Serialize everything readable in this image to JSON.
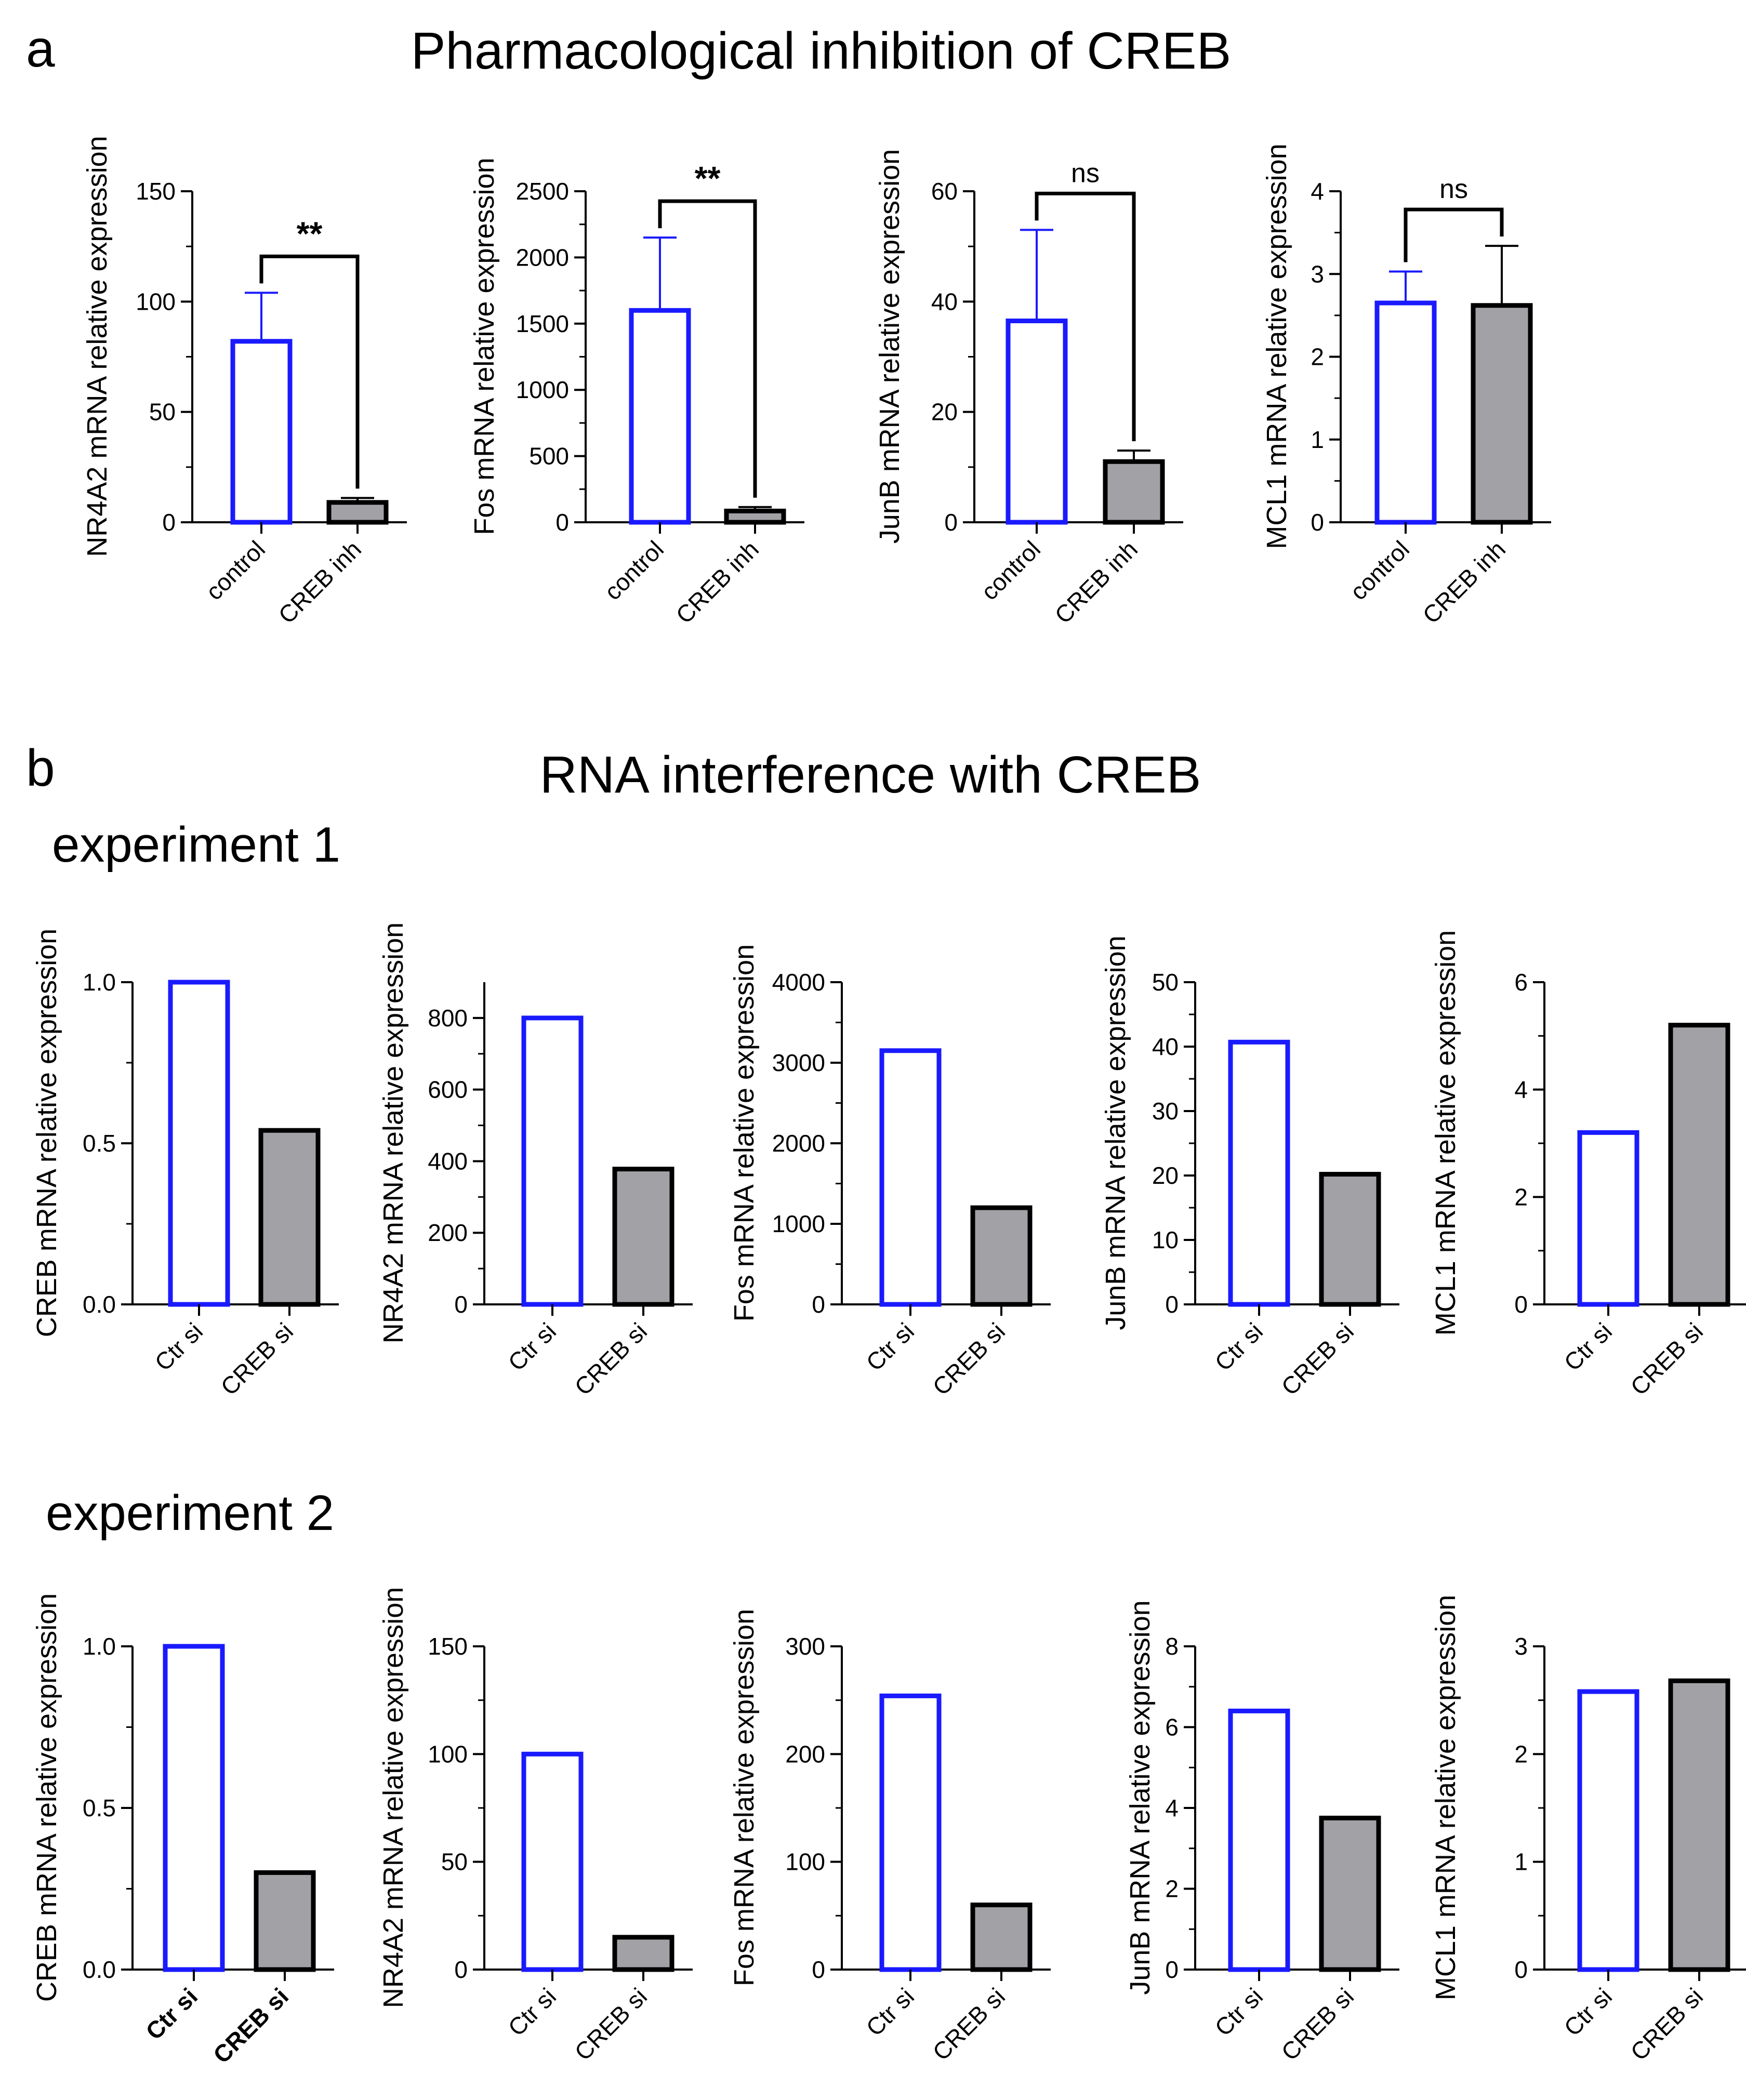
{
  "panel_a": {
    "letter": "a",
    "title": "Pharmacological inhibition of CREB"
  },
  "panel_b": {
    "letter": "b",
    "title": "RNA interference with CREB",
    "experiment1_title": "experiment 1",
    "experiment2_title": "experiment 2"
  },
  "colors": {
    "control": "#1a1aff",
    "treated_fill": "#a2a2a6",
    "treated_edge": "#000000"
  },
  "chart_data": [
    {
      "id": "a1",
      "type": "bar",
      "ylabel": "NR4A2 mRNA relative expression",
      "categories": [
        "control",
        "CREB inh"
      ],
      "values": [
        82,
        9
      ],
      "errors": [
        22,
        2
      ],
      "ylim": [
        0,
        150
      ],
      "yticks": [
        0,
        50,
        100,
        150
      ],
      "significance": "**"
    },
    {
      "id": "a2",
      "type": "bar",
      "ylabel": "Fos mRNA relative expression",
      "categories": [
        "control",
        "CREB inh"
      ],
      "values": [
        1600,
        85
      ],
      "errors": [
        550,
        30
      ],
      "ylim": [
        0,
        2500
      ],
      "yticks": [
        0,
        500,
        1000,
        1500,
        2000,
        2500
      ],
      "significance": "**"
    },
    {
      "id": "a3",
      "type": "bar",
      "ylabel": "JunB mRNA relative expression",
      "categories": [
        "control",
        "CREB inh"
      ],
      "values": [
        36.5,
        11
      ],
      "errors": [
        16.5,
        2
      ],
      "ylim": [
        0,
        60
      ],
      "yticks": [
        0,
        20,
        40,
        60
      ],
      "significance": "ns"
    },
    {
      "id": "a4",
      "type": "bar",
      "ylabel": "MCL1 mRNA relative expression",
      "categories": [
        "control",
        "CREB inh"
      ],
      "values": [
        2.65,
        2.62
      ],
      "errors": [
        0.38,
        0.72
      ],
      "ylim": [
        0,
        4
      ],
      "yticks": [
        0,
        1,
        2,
        3,
        4
      ],
      "significance": "ns"
    },
    {
      "id": "b1",
      "type": "bar",
      "ylabel": "CREB mRNA relative expression",
      "categories": [
        "Ctr si",
        "CREB si"
      ],
      "values": [
        1.0,
        0.54
      ],
      "ylim": [
        0,
        1.0
      ],
      "yticks": [
        0.0,
        0.5,
        1.0
      ],
      "tick_labels": [
        "0.0",
        "0.5",
        "1.0"
      ]
    },
    {
      "id": "b2",
      "type": "bar",
      "ylabel": "NR4A2 mRNA relative expression",
      "categories": [
        "Ctr si",
        "CREB si"
      ],
      "values": [
        800,
        378
      ],
      "ylim": [
        0,
        900
      ],
      "yticks": [
        0,
        200,
        400,
        600,
        800
      ]
    },
    {
      "id": "b3",
      "type": "bar",
      "ylabel": "Fos mRNA relative expression",
      "categories": [
        "Ctr si",
        "CREB si"
      ],
      "values": [
        3150,
        1200
      ],
      "ylim": [
        0,
        4000
      ],
      "yticks": [
        0,
        1000,
        2000,
        3000,
        4000
      ]
    },
    {
      "id": "b4",
      "type": "bar",
      "ylabel": "JunB mRNA relative expression",
      "categories": [
        "Ctr si",
        "CREB si"
      ],
      "values": [
        40.7,
        20.2
      ],
      "ylim": [
        0,
        50
      ],
      "yticks": [
        0,
        10,
        20,
        30,
        40,
        50
      ]
    },
    {
      "id": "b5",
      "type": "bar",
      "ylabel": "MCL1 mRNA relative expression",
      "categories": [
        "Ctr si",
        "CREB si"
      ],
      "values": [
        3.2,
        5.2
      ],
      "ylim": [
        0,
        6
      ],
      "yticks": [
        0,
        2,
        4,
        6
      ]
    },
    {
      "id": "c1",
      "type": "bar",
      "ylabel": "CREB mRNA relative expression",
      "categories": [
        "Ctr si",
        "CREB si"
      ],
      "values": [
        1.0,
        0.3
      ],
      "ylim": [
        0,
        1.0
      ],
      "yticks": [
        0.0,
        0.5,
        1.0
      ],
      "tick_labels": [
        "0.0",
        "0.5",
        "1.0"
      ],
      "bold_categories": true
    },
    {
      "id": "c2",
      "type": "bar",
      "ylabel": "NR4A2 mRNA relative expression",
      "categories": [
        "Ctr si",
        "CREB si"
      ],
      "values": [
        100,
        15
      ],
      "ylim": [
        0,
        150
      ],
      "yticks": [
        0,
        50,
        100,
        150
      ]
    },
    {
      "id": "c3",
      "type": "bar",
      "ylabel": "Fos mRNA relative expression",
      "categories": [
        "Ctr si",
        "CREB si"
      ],
      "values": [
        254,
        60
      ],
      "ylim": [
        0,
        300
      ],
      "yticks": [
        0,
        100,
        200,
        300
      ]
    },
    {
      "id": "c4",
      "type": "bar",
      "ylabel": "JunB mRNA relative expression",
      "categories": [
        "Ctr si",
        "CREB si"
      ],
      "values": [
        6.4,
        3.75
      ],
      "ylim": [
        0,
        8
      ],
      "yticks": [
        0,
        2,
        4,
        6,
        8
      ]
    },
    {
      "id": "c5",
      "type": "bar",
      "ylabel": "MCL1 mRNA relative expression",
      "categories": [
        "Ctr si",
        "CREB si"
      ],
      "values": [
        2.58,
        2.68
      ],
      "ylim": [
        0,
        3
      ],
      "yticks": [
        0,
        1,
        2,
        3
      ]
    }
  ]
}
